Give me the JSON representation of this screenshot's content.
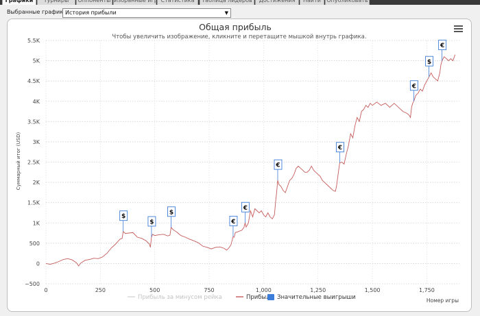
{
  "tabs": [
    {
      "label": "Графики",
      "active": true
    },
    {
      "label": "Турниры"
    },
    {
      "label": "Оппоненты"
    },
    {
      "label": "Избранные игры"
    },
    {
      "label": "Статистика"
    },
    {
      "label": "Таблица лидеров"
    },
    {
      "label": "Достижения"
    },
    {
      "label": "Найти"
    },
    {
      "label": "Опубликовать"
    }
  ],
  "selector": {
    "label": "Выбранные графики:",
    "value": "История прибыли"
  },
  "chart_data": {
    "type": "line",
    "title": "Общая прибыль",
    "subtitle": "Чтобы увеличить изображение, кликните и перетащите мышкой внутрь графика.",
    "xlabel": "Номер игры",
    "ylabel": "Суммарный итог (USD)",
    "xlim": [
      0,
      1900
    ],
    "ylim": [
      -500,
      5500
    ],
    "xticks": [
      "0",
      "250",
      "500",
      "750",
      "1,000",
      "1,250",
      "1,500",
      "1,750"
    ],
    "xtick_values": [
      0,
      250,
      500,
      750,
      1000,
      1250,
      1500,
      1750
    ],
    "yticks": [
      "−500",
      "0",
      "500",
      "1K",
      "1.5K",
      "2K",
      "2.5K",
      "3K",
      "3.5K",
      "4K",
      "4.5K",
      "5K",
      "5.5K"
    ],
    "ytick_values": [
      -500,
      0,
      500,
      1000,
      1500,
      2000,
      2500,
      3000,
      3500,
      4000,
      4500,
      5000,
      5500
    ],
    "grid": true,
    "legend_position": "bottom-center",
    "legend": [
      {
        "label": "Прибыль за минусом рейка",
        "color": "#d6d6d6",
        "kind": "line"
      },
      {
        "label": "Прибыль",
        "color": "#c55b5b",
        "kind": "line"
      },
      {
        "label": "Значительные выигрыши",
        "color": "#3b7dd8",
        "kind": "box"
      }
    ],
    "series": [
      {
        "name": "Прибыль",
        "color": "#c55b5b",
        "points": [
          [
            0,
            0
          ],
          [
            20,
            -20
          ],
          [
            40,
            10
          ],
          [
            60,
            50
          ],
          [
            80,
            100
          ],
          [
            100,
            120
          ],
          [
            120,
            90
          ],
          [
            140,
            20
          ],
          [
            150,
            -60
          ],
          [
            160,
            10
          ],
          [
            180,
            80
          ],
          [
            200,
            100
          ],
          [
            220,
            130
          ],
          [
            240,
            120
          ],
          [
            260,
            160
          ],
          [
            280,
            250
          ],
          [
            300,
            380
          ],
          [
            320,
            480
          ],
          [
            340,
            600
          ],
          [
            350,
            620
          ],
          [
            355,
            790
          ],
          [
            365,
            740
          ],
          [
            380,
            750
          ],
          [
            400,
            760
          ],
          [
            420,
            650
          ],
          [
            440,
            620
          ],
          [
            460,
            560
          ],
          [
            475,
            480
          ],
          [
            480,
            400
          ],
          [
            485,
            650
          ],
          [
            490,
            720
          ],
          [
            500,
            690
          ],
          [
            520,
            710
          ],
          [
            540,
            720
          ],
          [
            560,
            680
          ],
          [
            570,
            700
          ],
          [
            575,
            890
          ],
          [
            585,
            830
          ],
          [
            600,
            780
          ],
          [
            620,
            690
          ],
          [
            640,
            650
          ],
          [
            660,
            600
          ],
          [
            680,
            560
          ],
          [
            700,
            510
          ],
          [
            720,
            430
          ],
          [
            740,
            400
          ],
          [
            760,
            360
          ],
          [
            780,
            400
          ],
          [
            800,
            410
          ],
          [
            820,
            370
          ],
          [
            830,
            330
          ],
          [
            840,
            380
          ],
          [
            850,
            460
          ],
          [
            860,
            660
          ],
          [
            865,
            650
          ],
          [
            870,
            760
          ],
          [
            880,
            780
          ],
          [
            890,
            800
          ],
          [
            900,
            820
          ],
          [
            910,
            890
          ],
          [
            915,
            1000
          ],
          [
            920,
            900
          ],
          [
            930,
            1000
          ],
          [
            940,
            1300
          ],
          [
            950,
            1150
          ],
          [
            960,
            1350
          ],
          [
            970,
            1300
          ],
          [
            980,
            1250
          ],
          [
            990,
            1300
          ],
          [
            1000,
            1200
          ],
          [
            1010,
            1150
          ],
          [
            1020,
            1250
          ],
          [
            1030,
            1150
          ],
          [
            1040,
            1100
          ],
          [
            1050,
            1200
          ],
          [
            1055,
            1500
          ],
          [
            1060,
            1750
          ],
          [
            1065,
            2050
          ],
          [
            1070,
            1950
          ],
          [
            1080,
            1900
          ],
          [
            1090,
            1800
          ],
          [
            1100,
            1750
          ],
          [
            1110,
            1900
          ],
          [
            1120,
            2050
          ],
          [
            1130,
            2100
          ],
          [
            1140,
            2200
          ],
          [
            1150,
            2350
          ],
          [
            1160,
            2400
          ],
          [
            1170,
            2350
          ],
          [
            1180,
            2300
          ],
          [
            1190,
            2250
          ],
          [
            1200,
            2250
          ],
          [
            1210,
            2300
          ],
          [
            1220,
            2400
          ],
          [
            1230,
            2300
          ],
          [
            1240,
            2250
          ],
          [
            1250,
            2200
          ],
          [
            1260,
            2150
          ],
          [
            1270,
            2050
          ],
          [
            1280,
            2000
          ],
          [
            1290,
            1950
          ],
          [
            1300,
            1900
          ],
          [
            1310,
            1850
          ],
          [
            1320,
            1800
          ],
          [
            1330,
            1780
          ],
          [
            1335,
            1900
          ],
          [
            1340,
            2100
          ],
          [
            1345,
            2300
          ],
          [
            1350,
            2480
          ],
          [
            1360,
            2500
          ],
          [
            1370,
            2450
          ],
          [
            1380,
            2700
          ],
          [
            1390,
            2900
          ],
          [
            1400,
            3200
          ],
          [
            1410,
            3100
          ],
          [
            1420,
            3400
          ],
          [
            1430,
            3600
          ],
          [
            1440,
            3500
          ],
          [
            1450,
            3750
          ],
          [
            1460,
            3800
          ],
          [
            1470,
            3900
          ],
          [
            1480,
            3850
          ],
          [
            1490,
            3950
          ],
          [
            1500,
            3900
          ],
          [
            1520,
            3980
          ],
          [
            1540,
            3900
          ],
          [
            1560,
            3950
          ],
          [
            1580,
            3850
          ],
          [
            1600,
            3950
          ],
          [
            1620,
            3850
          ],
          [
            1640,
            3750
          ],
          [
            1660,
            3700
          ],
          [
            1670,
            3650
          ],
          [
            1675,
            3600
          ],
          [
            1680,
            3850
          ],
          [
            1685,
            3950
          ],
          [
            1690,
            4000
          ],
          [
            1700,
            4150
          ],
          [
            1710,
            4200
          ],
          [
            1720,
            4300
          ],
          [
            1730,
            4250
          ],
          [
            1740,
            4400
          ],
          [
            1750,
            4500
          ],
          [
            1760,
            4600
          ],
          [
            1770,
            4700
          ],
          [
            1780,
            4600
          ],
          [
            1790,
            4550
          ],
          [
            1800,
            4500
          ],
          [
            1810,
            4700
          ],
          [
            1815,
            4900
          ],
          [
            1820,
            5000
          ],
          [
            1830,
            5100
          ],
          [
            1840,
            5050
          ],
          [
            1850,
            5000
          ],
          [
            1860,
            5050
          ],
          [
            1870,
            5000
          ],
          [
            1880,
            5150
          ]
        ]
      }
    ],
    "big_wins": [
      {
        "x": 355,
        "y": 790,
        "symbol": "$"
      },
      {
        "x": 485,
        "y": 650,
        "symbol": "$"
      },
      {
        "x": 575,
        "y": 890,
        "symbol": "$"
      },
      {
        "x": 860,
        "y": 660,
        "symbol": "€"
      },
      {
        "x": 915,
        "y": 1000,
        "symbol": "€"
      },
      {
        "x": 1065,
        "y": 2050,
        "symbol": "€"
      },
      {
        "x": 1350,
        "y": 2480,
        "symbol": "€"
      },
      {
        "x": 1690,
        "y": 4000,
        "symbol": "€"
      },
      {
        "x": 1760,
        "y": 4600,
        "symbol": "$"
      },
      {
        "x": 1820,
        "y": 5000,
        "symbol": "€"
      }
    ]
  }
}
